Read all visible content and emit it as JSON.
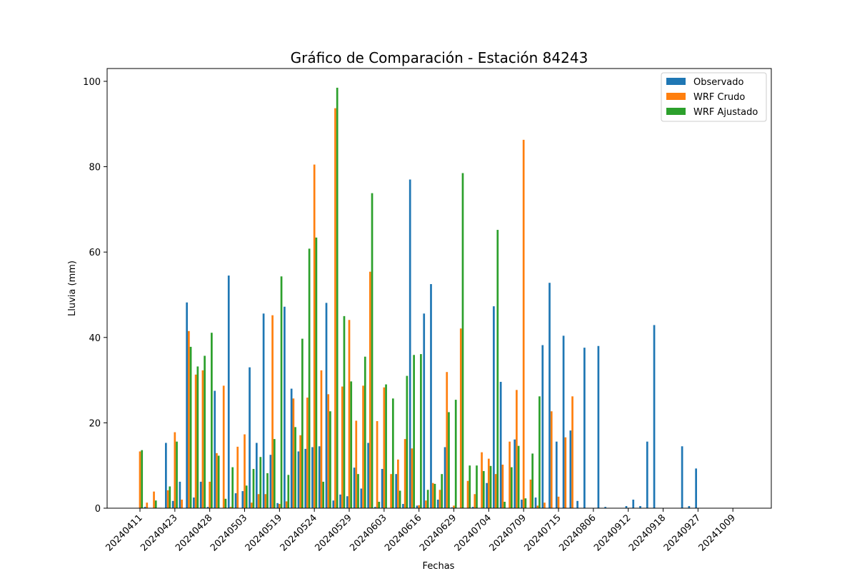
{
  "chart_data": {
    "type": "bar",
    "title": "Gráfico de Comparación - Estación 84243",
    "xlabel": "Fechas",
    "ylabel": "Lluvia (mm)",
    "ylim": [
      0,
      103
    ],
    "yticks": [
      0,
      20,
      40,
      60,
      80,
      100
    ],
    "xtick_labels": [
      "20240411",
      "20240423",
      "20240428",
      "20240503",
      "20240519",
      "20240524",
      "20240529",
      "20240603",
      "20240616",
      "20240629",
      "20240704",
      "20240709",
      "20240715",
      "20240806",
      "20240912",
      "20240918",
      "20240927",
      "20241009"
    ],
    "xtick_every": 5,
    "legend_position": "upper right",
    "grid": false,
    "colors": {
      "observado": "#1f77b4",
      "crudo": "#ff7f0e",
      "ajustado": "#2ca02c"
    },
    "series": [
      {
        "name": "Observado",
        "values": [
          0,
          0.3,
          0,
          0.1,
          15.3,
          1.7,
          6.2,
          48.2,
          2.5,
          6.2,
          0.3,
          27.5,
          0,
          54.5,
          3.5,
          4.0,
          33.0,
          15.3,
          45.6,
          12.5,
          1.2,
          47.2,
          28.0,
          13.3,
          13.9,
          14.3,
          14.5,
          48.1,
          1.8,
          3.2,
          2.8,
          9.5,
          4.6,
          15.3,
          0.3,
          9.2,
          0,
          8.0,
          1.0,
          77.0,
          0.6,
          45.6,
          52.5,
          2.0,
          14.3,
          0.2,
          0,
          0,
          0.3,
          0,
          5.9,
          47.3,
          29.6,
          0,
          16.1,
          2.0,
          0,
          2.5,
          38.2,
          52.8,
          15.6,
          40.4,
          18.2,
          1.7,
          37.6,
          0,
          38.0,
          0.3,
          0,
          0,
          0.5,
          2.0,
          0.5,
          15.6,
          42.9,
          0,
          0,
          0,
          14.5,
          0.5,
          9.3,
          0
        ],
        "note": "one value per date bar group"
      },
      {
        "name": "WRF Crudo",
        "values": [
          13.3,
          1.3,
          3.9,
          0.1,
          4.2,
          17.8,
          2.0,
          41.5,
          31.3,
          32.3,
          6.2,
          12.9,
          28.7,
          0.3,
          14.4,
          17.3,
          1.3,
          3.3,
          3.3,
          45.2,
          1.0,
          1.6,
          25.7,
          17.1,
          25.9,
          80.5,
          32.3,
          26.7,
          93.7,
          28.5,
          44.1,
          20.5,
          28.7,
          55.4,
          20.4,
          28.3,
          8.0,
          11.4,
          16.2,
          14.0,
          0.7,
          1.8,
          5.9,
          4.3,
          31.9,
          0.6,
          42.1,
          6.4,
          3.3,
          13.1,
          11.6,
          8.0,
          10.2,
          15.6,
          27.7,
          86.3,
          6.7,
          0.6,
          1.3,
          22.7,
          2.7,
          16.6,
          26.2,
          0,
          0,
          0,
          0,
          0,
          0,
          0,
          0,
          0,
          0,
          0,
          0,
          0,
          0,
          0,
          0,
          0,
          0,
          0
        ]
      },
      {
        "name": "WRF Ajustado",
        "values": [
          13.6,
          0,
          1.8,
          0,
          5.1,
          15.6,
          0,
          37.8,
          33.2,
          35.7,
          41.1,
          12.3,
          2.2,
          9.6,
          0,
          5.3,
          9.2,
          12.0,
          8.2,
          16.2,
          54.3,
          7.8,
          19.0,
          39.7,
          60.8,
          63.4,
          6.2,
          22.7,
          98.5,
          45.0,
          29.7,
          8.0,
          35.5,
          73.8,
          1.5,
          29.0,
          25.7,
          4.1,
          31.0,
          35.9,
          36.1,
          4.3,
          5.7,
          8.0,
          22.5,
          25.4,
          78.5,
          10.0,
          10.0,
          8.7,
          9.9,
          65.2,
          1.5,
          9.6,
          14.6,
          2.3,
          12.8,
          26.2,
          0,
          0,
          0,
          0,
          0,
          0,
          0,
          0,
          0,
          0,
          0,
          0,
          0,
          0,
          0,
          0,
          0,
          0,
          0,
          0,
          0,
          0,
          0,
          0
        ]
      }
    ]
  }
}
